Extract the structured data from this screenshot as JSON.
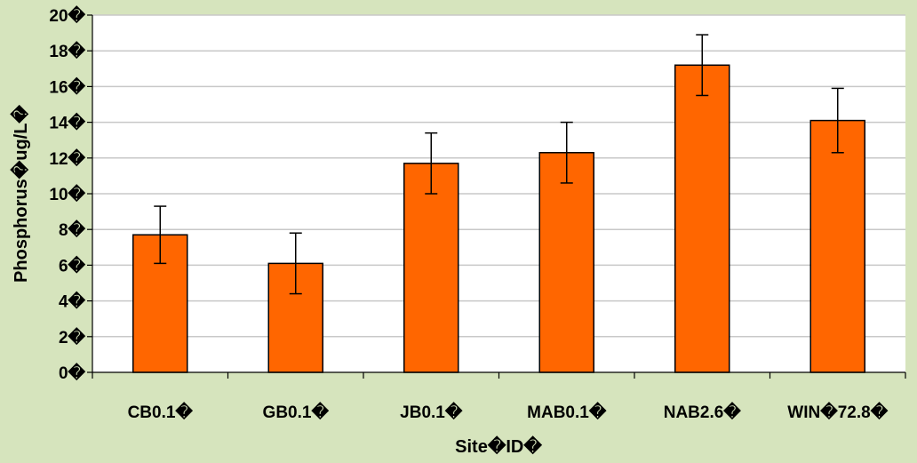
{
  "chart_data": {
    "type": "bar",
    "xlabel": "Site�ID�",
    "ylabel": "Phosphorus�ug/L�",
    "ylim": [
      0,
      20
    ],
    "yticks": [
      0,
      2,
      4,
      6,
      8,
      10,
      12,
      14,
      16,
      18,
      20
    ],
    "ytick_labels": [
      "0�",
      "2�",
      "4�",
      "6�",
      "8�",
      "10�",
      "12�",
      "14�",
      "16�",
      "18�",
      "20�"
    ],
    "categories": [
      "CB0.1�",
      "GB0.1�",
      "JB0.1�",
      "MAB0.1�",
      "NAB2.6�",
      "WIN�72.8�"
    ],
    "values": [
      7.7,
      6.1,
      11.7,
      12.3,
      17.2,
      14.1
    ],
    "error": [
      1.6,
      1.7,
      1.7,
      1.7,
      1.7,
      1.8
    ],
    "grid": true,
    "legend": "none",
    "colors": {
      "bar": "#ff6600",
      "bar_edge": "#000000",
      "plot_background": "#ffffff",
      "page_background": "#d6e4bd",
      "grid": "#c8c8c8"
    }
  }
}
